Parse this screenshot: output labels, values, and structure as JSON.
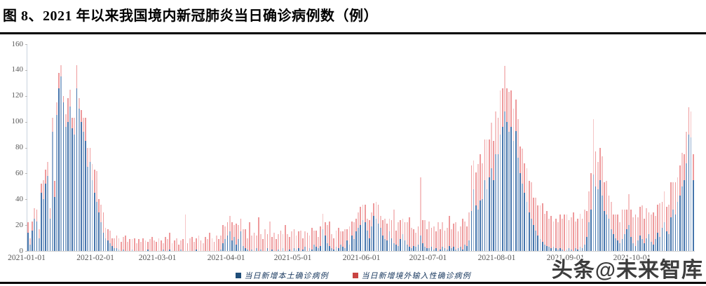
{
  "title": "图 8、2021 年以来我国境内新冠肺炎当日确诊病例数（例）",
  "watermark": "头条@未来智库",
  "colors": {
    "local_bar": "#3d6ea8",
    "imported_bar": "#ee9597",
    "legend_local_swatch": "#1f4e79",
    "legend_imported_swatch": "#c94442",
    "axis_text": "#595959"
  },
  "legend": {
    "local_label": "当日新增本土确诊病例",
    "imported_label": "当日新增境外输入性确诊病例"
  },
  "chart_data": {
    "type": "bar",
    "stacked": true,
    "title": "图 8、2021 年以来我国境内新冠肺炎当日确诊病例数（例）",
    "start_date": "2021-01-01",
    "ylim": [
      0,
      160
    ],
    "y_ticks": [
      0,
      20,
      40,
      60,
      80,
      100,
      120,
      140,
      160
    ],
    "grid": false,
    "legend_position": "bottom",
    "x_tick_labels": [
      "2021-01-01",
      "2021-02-01",
      "2021-03-01",
      "2021-04-01",
      "2021-05-01",
      "2021-06-01",
      "2021-07-01",
      "2021-08-01",
      "2021-09-01",
      "2021-10-01"
    ],
    "x_tick_day_offsets": [
      0,
      31,
      59,
      90,
      120,
      151,
      181,
      212,
      243,
      273
    ],
    "series": [
      {
        "name": "当日新增本土确诊病例",
        "color": "#3d6ea8",
        "values": [
          14,
          5,
          16,
          25,
          23,
          10,
          45,
          40,
          52,
          58,
          25,
          92,
          42,
          105,
          126,
          135,
          115,
          96,
          100,
          112,
          95,
          90,
          126,
          110,
          100,
          92,
          85,
          65,
          69,
          55,
          45,
          38,
          30,
          22,
          14,
          10,
          8,
          6,
          4,
          2,
          2,
          1,
          0,
          1,
          0,
          0,
          0,
          1,
          0,
          0,
          0,
          0,
          0,
          0,
          1,
          0,
          0,
          0,
          0,
          0,
          0,
          1,
          0,
          0,
          1,
          0,
          0,
          0,
          0,
          1,
          0,
          0,
          0,
          0,
          0,
          0,
          1,
          0,
          0,
          0,
          0,
          0,
          0,
          0,
          0,
          0,
          0,
          1,
          6,
          9,
          12,
          15,
          8,
          11,
          5,
          9,
          15,
          4,
          2,
          1,
          0,
          1,
          0,
          2,
          0,
          1,
          0,
          0,
          2,
          0,
          1,
          0,
          0,
          1,
          0,
          2,
          0,
          0,
          1,
          0,
          2,
          1,
          2,
          0,
          1,
          3,
          0,
          2,
          1,
          5,
          3,
          2,
          4,
          17,
          12,
          6,
          4,
          2,
          1,
          3,
          2,
          5,
          3,
          2,
          8,
          5,
          12,
          9,
          15,
          18,
          20,
          24,
          22,
          16,
          10,
          19,
          27,
          25,
          21,
          18,
          12,
          9,
          8,
          15,
          10,
          6,
          5,
          4,
          9,
          13,
          8,
          5,
          3,
          2,
          4,
          3,
          5,
          12,
          6,
          3,
          2,
          2,
          3,
          1,
          2,
          0,
          1,
          3,
          2,
          1,
          4,
          2,
          3,
          1,
          2,
          3,
          1,
          5,
          4,
          8,
          31,
          48,
          35,
          32,
          39,
          40,
          55,
          48,
          57,
          64,
          55,
          75,
          75,
          90,
          96,
          108,
          100,
          92,
          96,
          85,
          93,
          72,
          60,
          52,
          45,
          38,
          30,
          25,
          20,
          16,
          12,
          9,
          7,
          5,
          4,
          3,
          2,
          3,
          2,
          1,
          2,
          1,
          0,
          1,
          2,
          1,
          0,
          2,
          1,
          3,
          2,
          5,
          11,
          22,
          32,
          59,
          50,
          48,
          55,
          43,
          31,
          28,
          25,
          17,
          13,
          10,
          8,
          6,
          9,
          13,
          17,
          20,
          11,
          6,
          4,
          8,
          12,
          9,
          6,
          10,
          13,
          7,
          5,
          9,
          14,
          11,
          18,
          22,
          15,
          13,
          26,
          32,
          28,
          38,
          43,
          50,
          55,
          68,
          90,
          88,
          55
        ]
      },
      {
        "name": "当日新增境外输入性确诊病例",
        "color": "#ee9597",
        "values": [
          8,
          5,
          7,
          8,
          9,
          7,
          7,
          15,
          11,
          11,
          8,
          11,
          12,
          10,
          12,
          9,
          5,
          10,
          18,
          13,
          8,
          13,
          18,
          8,
          9,
          11,
          18,
          15,
          11,
          12,
          18,
          24,
          10,
          14,
          16,
          8,
          9,
          10,
          6,
          8,
          10,
          9,
          7,
          10,
          12,
          7,
          9,
          8,
          10,
          6,
          9,
          7,
          10,
          8,
          6,
          9,
          11,
          8,
          7,
          10,
          8,
          5,
          11,
          9,
          13,
          6,
          8,
          10,
          5,
          7,
          9,
          28,
          6,
          10,
          11,
          7,
          9,
          12,
          8,
          6,
          11,
          9,
          14,
          10,
          7,
          12,
          9,
          11,
          14,
          10,
          10,
          12,
          14,
          9,
          16,
          11,
          10,
          13,
          15,
          9,
          22,
          11,
          14,
          10,
          26,
          12,
          9,
          17,
          11,
          23,
          10,
          14,
          9,
          12,
          16,
          11,
          20,
          13,
          10,
          15,
          15,
          11,
          13,
          16,
          9,
          12,
          14,
          10,
          17,
          11,
          13,
          9,
          15,
          12,
          10,
          14,
          19,
          11,
          9,
          13,
          16,
          10,
          12,
          15,
          9,
          14,
          11,
          13,
          10,
          12,
          14,
          12,
          14,
          9,
          14,
          11,
          10,
          13,
          15,
          9,
          12,
          16,
          13,
          10,
          14,
          26,
          11,
          18,
          15,
          12,
          14,
          17,
          23,
          16,
          13,
          11,
          14,
          45,
          18,
          21,
          15,
          21,
          15,
          18,
          13,
          22,
          16,
          19,
          14,
          17,
          23,
          15,
          18,
          21,
          13,
          16,
          24,
          18,
          15,
          22,
          35,
          22,
          26,
          35,
          36,
          28,
          31,
          38,
          29,
          35,
          30,
          33,
          28,
          34,
          30,
          35,
          26,
          31,
          28,
          25,
          24,
          30,
          21,
          27,
          23,
          26,
          24,
          28,
          21,
          25,
          23,
          26,
          30,
          24,
          27,
          22,
          25,
          20,
          23,
          21,
          26,
          24,
          28,
          27,
          22,
          25,
          30,
          21,
          24,
          26,
          23,
          27,
          20,
          24,
          28,
          43,
          27,
          21,
          25,
          30,
          22,
          26,
          18,
          21,
          15,
          18,
          20,
          16,
          23,
          19,
          15,
          24,
          21,
          20,
          24,
          18,
          22,
          26,
          19,
          23,
          17,
          21,
          25,
          18,
          22,
          26,
          20,
          24,
          19,
          23,
          27,
          21,
          25,
          19,
          23,
          26,
          20,
          24,
          21,
          20,
          20
        ]
      }
    ]
  }
}
